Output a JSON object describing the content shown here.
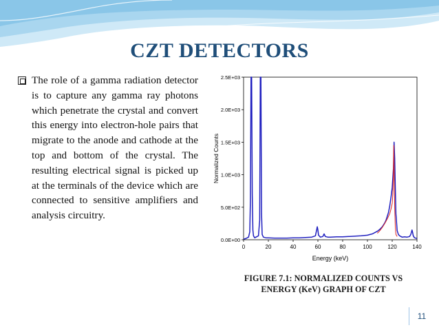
{
  "slide": {
    "title": "CZT DETECTORS",
    "bullet": "The role of a gamma radiation detector is to capture any gamma ray photons which penetrate the crystal and convert this energy into electron-hole pairs that migrate to the anode and cathode at the top and bottom of the crystal. The resulting electrical signal is picked up at the terminals of the device which are connected to sensitive amplifiers and analysis circuitry.",
    "caption_line1": "FIGURE 7.1: NORMALIZED COUNTS VS",
    "caption_line2": "ENERGY (KeV) GRAPH OF CZT",
    "page_number": "11",
    "colors": {
      "title": "#1f4e79",
      "banner": "#bde0f3"
    },
    "icons": {
      "bullet": "checkbox-square-icon"
    }
  },
  "chart_data": {
    "type": "line",
    "xlabel": "Energy (keV)",
    "ylabel": "Normalized Counts",
    "xlim": [
      0,
      140
    ],
    "ylim": [
      0,
      2500
    ],
    "x_ticks": [
      "0",
      "20",
      "40",
      "60",
      "80",
      "100",
      "120",
      "140"
    ],
    "y_ticks": [
      "0.0E+00",
      "5.0E+02",
      "1.0E+03",
      "1.5E+03",
      "2.0E+03",
      "2.5E+03"
    ],
    "y_tick_values": [
      0,
      500,
      1000,
      1500,
      2000,
      2500
    ],
    "grid": false,
    "series": [
      {
        "color": "#1f1fbf",
        "x": [
          0,
          2,
          4,
          5,
          5.5,
          6,
          6.5,
          7,
          7.5,
          8,
          9,
          10,
          12,
          13,
          13.5,
          14,
          14.5,
          15,
          16,
          18,
          20,
          25,
          30,
          35,
          40,
          45,
          50,
          55,
          58,
          59.5,
          60,
          60.5,
          62,
          64,
          65,
          66,
          68,
          70,
          75,
          80,
          85,
          90,
          95,
          100,
          102,
          104,
          106,
          108,
          110,
          112,
          114,
          115,
          116,
          117,
          118,
          119,
          120,
          121,
          121.5,
          122,
          122.5,
          123,
          124,
          125,
          126,
          128,
          130,
          132,
          134,
          135,
          136,
          136.5,
          137,
          138,
          140
        ],
        "y": [
          10,
          20,
          40,
          120,
          600,
          2500,
          2500,
          700,
          150,
          60,
          30,
          40,
          60,
          300,
          2500,
          2500,
          400,
          80,
          40,
          30,
          30,
          25,
          25,
          25,
          30,
          30,
          35,
          40,
          60,
          200,
          150,
          70,
          40,
          50,
          90,
          50,
          40,
          40,
          45,
          45,
          50,
          55,
          60,
          70,
          80,
          90,
          110,
          130,
          160,
          200,
          260,
          300,
          360,
          420,
          520,
          650,
          800,
          1100,
          1500,
          1250,
          800,
          400,
          140,
          80,
          60,
          40,
          45,
          40,
          50,
          80,
          150,
          110,
          60,
          30,
          20
        ]
      },
      {
        "color": "#dd2222",
        "x": [
          108,
          110,
          112,
          114,
          116,
          118,
          119,
          120,
          120.5,
          121,
          121.3,
          121.6,
          122,
          122.5,
          123,
          124
        ],
        "y": [
          100,
          140,
          190,
          250,
          320,
          400,
          470,
          560,
          700,
          1000,
          1450,
          1000,
          500,
          200,
          80,
          50
        ]
      }
    ]
  }
}
